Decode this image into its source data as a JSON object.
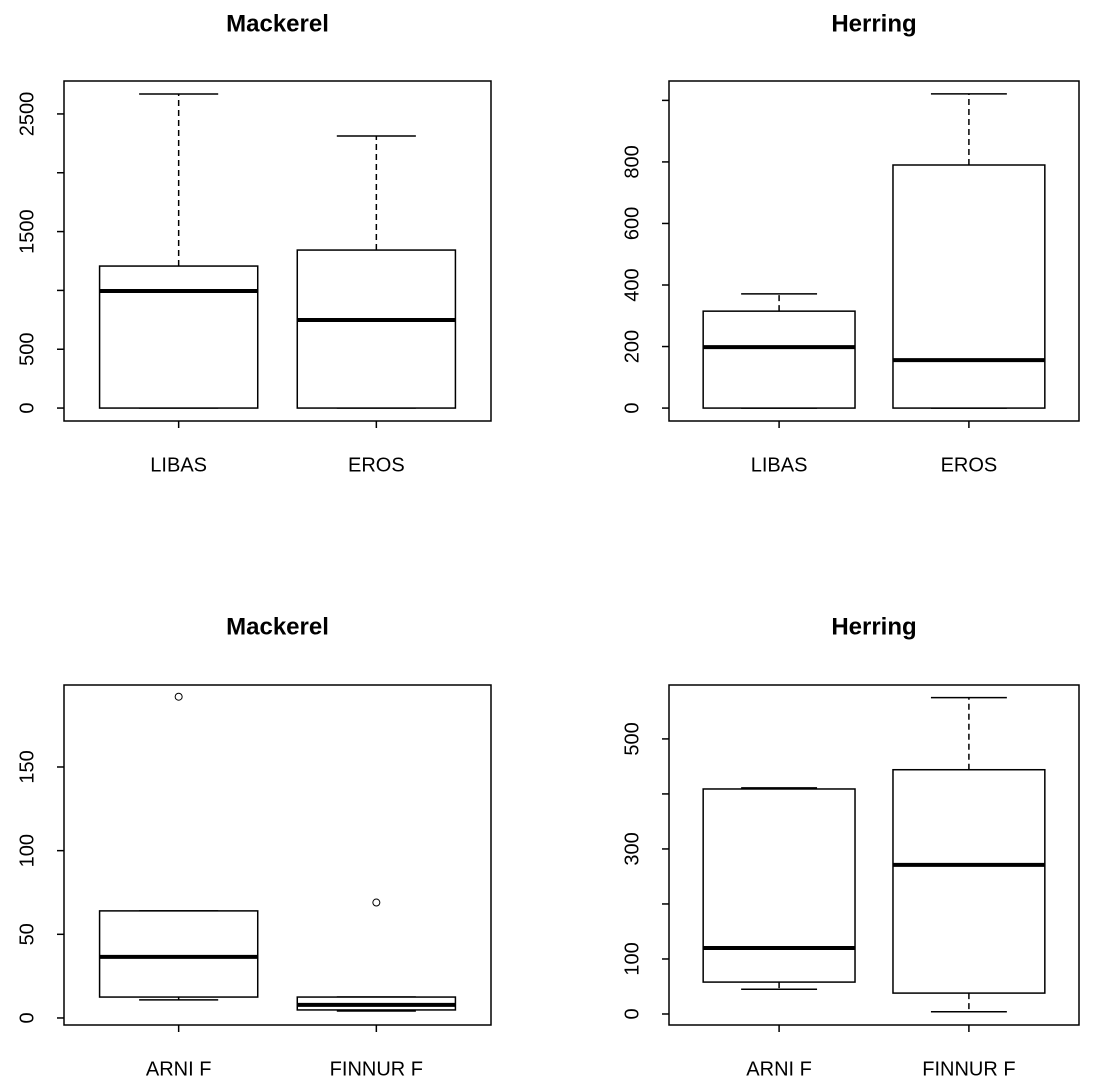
{
  "chart_data": [
    {
      "type": "box",
      "title": "Mackerel",
      "categories": [
        "LIBAS",
        "EROS"
      ],
      "boxes": [
        {
          "min": 0,
          "q1": 0,
          "median": 995,
          "q3": 1207,
          "max": 2670
        },
        {
          "min": 0,
          "q1": 0,
          "median": 748,
          "q3": 1343,
          "max": 2313
        }
      ],
      "ylim": [
        -110,
        2780
      ],
      "yticks": [
        0,
        500,
        1500,
        2500
      ],
      "unlabeled_yticks": [
        1000,
        2000
      ]
    },
    {
      "type": "box",
      "title": "Herring",
      "categories": [
        "LIBAS",
        "EROS"
      ],
      "boxes": [
        {
          "min": 0,
          "q1": 0,
          "median": 198,
          "q3": 315,
          "max": 371
        },
        {
          "min": 0,
          "q1": 0,
          "median": 156,
          "q3": 790,
          "max": 1021
        }
      ],
      "ylim": [
        -42,
        1063
      ],
      "yticks": [
        0,
        200,
        400,
        600,
        800
      ],
      "unlabeled_yticks": [
        1000
      ]
    },
    {
      "type": "box",
      "title": "Mackerel",
      "categories": [
        "ARNI F",
        "FINNUR F"
      ],
      "boxes": [
        {
          "min": 10.8,
          "q1": 12.5,
          "median": 36.5,
          "q3": 64,
          "max": 64,
          "outliers": [
            192
          ]
        },
        {
          "min": 4.2,
          "q1": 4.8,
          "median": 7.8,
          "q3": 12.5,
          "max": 12.5,
          "outliers": [
            69
          ]
        }
      ],
      "ylim": [
        -4.2,
        199
      ],
      "yticks": [
        0,
        50,
        100,
        150
      ]
    },
    {
      "type": "box",
      "title": "Herring",
      "categories": [
        "ARNI F",
        "FINNUR F"
      ],
      "boxes": [
        {
          "min": 45,
          "q1": 58,
          "median": 120,
          "q3": 409,
          "max": 411
        },
        {
          "min": 4,
          "q1": 38,
          "median": 271,
          "q3": 444,
          "max": 575
        }
      ],
      "ylim": [
        -20,
        598
      ],
      "yticks": [
        0,
        100,
        300,
        500
      ],
      "unlabeled_yticks": [
        200,
        400
      ]
    }
  ]
}
